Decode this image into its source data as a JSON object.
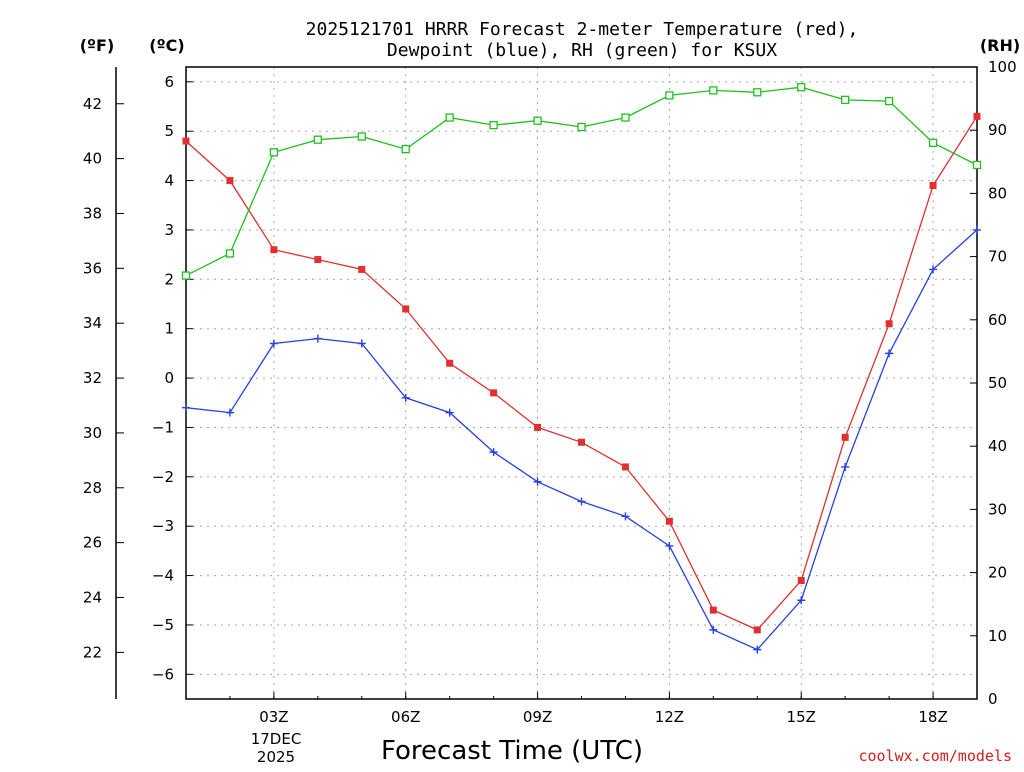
{
  "chart_data": {
    "type": "line",
    "title_line1": "2025121701 HRRR Forecast 2-meter Temperature (red),",
    "title_line2": "Dewpoint (blue), RH (green) for KSUX",
    "unit_labels": {
      "fahrenheit": "(ºF)",
      "celsius": "(ºC)",
      "rh": "(RH)"
    },
    "xlabel": "Forecast Time (UTC)",
    "credit": "coolwx.com/models",
    "x_ticks": [
      {
        "hour": 3,
        "label": "03Z"
      },
      {
        "hour": 6,
        "label": "06Z"
      },
      {
        "hour": 9,
        "label": "09Z"
      },
      {
        "hour": 12,
        "label": "12Z"
      },
      {
        "hour": 15,
        "label": "15Z"
      },
      {
        "hour": 18,
        "label": "18Z"
      }
    ],
    "date_label": [
      "17DEC",
      "2025"
    ],
    "xlim": [
      1,
      19
    ],
    "celsius_axis": {
      "range": [
        -6.5,
        6.3
      ],
      "ticks": [
        -6,
        -5,
        -4,
        -3,
        -2,
        -1,
        0,
        1,
        2,
        3,
        4,
        5,
        6
      ]
    },
    "fahrenheit_axis": {
      "ticks": [
        22,
        24,
        26,
        28,
        30,
        32,
        34,
        36,
        38,
        40,
        42
      ]
    },
    "rh_axis": {
      "range": [
        0,
        100
      ],
      "ticks": [
        0,
        10,
        20,
        30,
        40,
        50,
        60,
        70,
        80,
        90,
        100
      ]
    },
    "grid": true,
    "x": [
      1,
      2,
      3,
      4,
      5,
      6,
      7,
      8,
      9,
      10,
      11,
      12,
      13,
      14,
      15,
      16,
      17,
      18,
      19
    ],
    "series": [
      {
        "name": "Temperature",
        "axis": "celsius",
        "color": "#e03030",
        "marker": "filled-square",
        "values": [
          4.8,
          4.0,
          2.6,
          2.4,
          2.2,
          1.4,
          0.3,
          -0.3,
          -1.0,
          -1.3,
          -1.8,
          -2.9,
          -4.7,
          -5.1,
          -4.1,
          -1.2,
          1.1,
          3.9,
          5.3
        ]
      },
      {
        "name": "Dewpoint",
        "axis": "celsius",
        "color": "#2840e0",
        "marker": "plus",
        "values": [
          -0.6,
          -0.7,
          0.7,
          0.8,
          0.7,
          -0.4,
          -0.7,
          -1.5,
          -2.1,
          -2.5,
          -2.8,
          -3.4,
          -5.1,
          -5.5,
          -4.5,
          -1.8,
          0.5,
          2.2,
          3.0
        ]
      },
      {
        "name": "RH",
        "axis": "rh",
        "color": "#20c020",
        "marker": "open-square",
        "values": [
          67,
          70.5,
          86.5,
          88.5,
          89,
          87,
          92,
          90.8,
          91.5,
          90.5,
          92,
          95.5,
          96.3,
          96,
          96.8,
          94.8,
          94.6,
          88,
          84.5
        ]
      }
    ]
  }
}
